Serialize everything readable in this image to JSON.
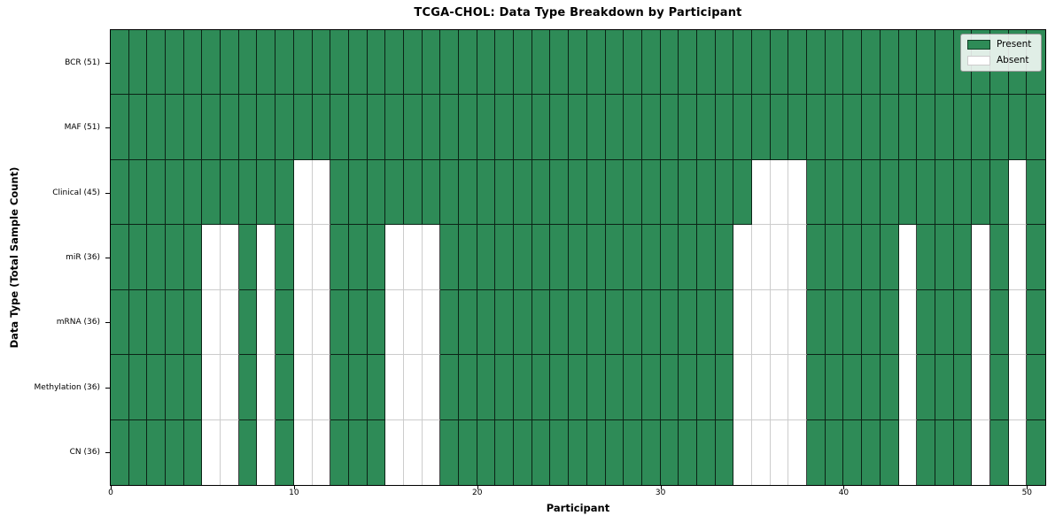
{
  "title": "TCGA-CHOL: Data Type Breakdown by Participant",
  "xlabel": "Participant",
  "ylabel": "Data Type (Total Sample Count)",
  "legend": {
    "position": "top-right",
    "entries": [
      {
        "label": "Present",
        "color": "#2E8B57"
      },
      {
        "label": "Absent",
        "color": "#FFFFFF"
      }
    ]
  },
  "chart_data": {
    "type": "heatmap",
    "title": "TCGA-CHOL: Data Type Breakdown by Participant",
    "xlabel": "Participant",
    "ylabel": "Data Type (Total Sample Count)",
    "n_participants": 51,
    "x_range": [
      0,
      51
    ],
    "x_ticks": [
      0,
      10,
      20,
      30,
      40,
      50
    ],
    "legend_position": "upper right",
    "colors": {
      "present": "#2E8B57",
      "absent": "#FFFFFF",
      "grid_line_present": "rgba(0,0,0,0.75)",
      "grid_line_absent": "#cccccc",
      "spine": "#000000"
    },
    "rows": [
      {
        "label": "BCR (51)",
        "total_samples": 51,
        "absent_participants": []
      },
      {
        "label": "MAF (51)",
        "total_samples": 51,
        "absent_participants": []
      },
      {
        "label": "Clinical (45)",
        "total_samples": 45,
        "absent_participants": [
          10,
          11,
          35,
          36,
          37,
          49
        ]
      },
      {
        "label": "miR (36)",
        "total_samples": 36,
        "absent_participants": [
          5,
          6,
          8,
          10,
          11,
          15,
          16,
          17,
          34,
          35,
          36,
          37,
          43,
          47,
          49
        ]
      },
      {
        "label": "mRNA (36)",
        "total_samples": 36,
        "absent_participants": [
          5,
          6,
          8,
          10,
          11,
          15,
          16,
          17,
          34,
          35,
          36,
          37,
          43,
          47,
          49
        ]
      },
      {
        "label": "Methylation (36)",
        "total_samples": 36,
        "absent_participants": [
          5,
          6,
          8,
          10,
          11,
          15,
          16,
          17,
          34,
          35,
          36,
          37,
          43,
          47,
          49
        ]
      },
      {
        "label": "CN (36)",
        "total_samples": 36,
        "absent_participants": [
          5,
          6,
          8,
          10,
          11,
          15,
          16,
          17,
          34,
          35,
          36,
          37,
          43,
          47,
          49
        ]
      }
    ]
  }
}
